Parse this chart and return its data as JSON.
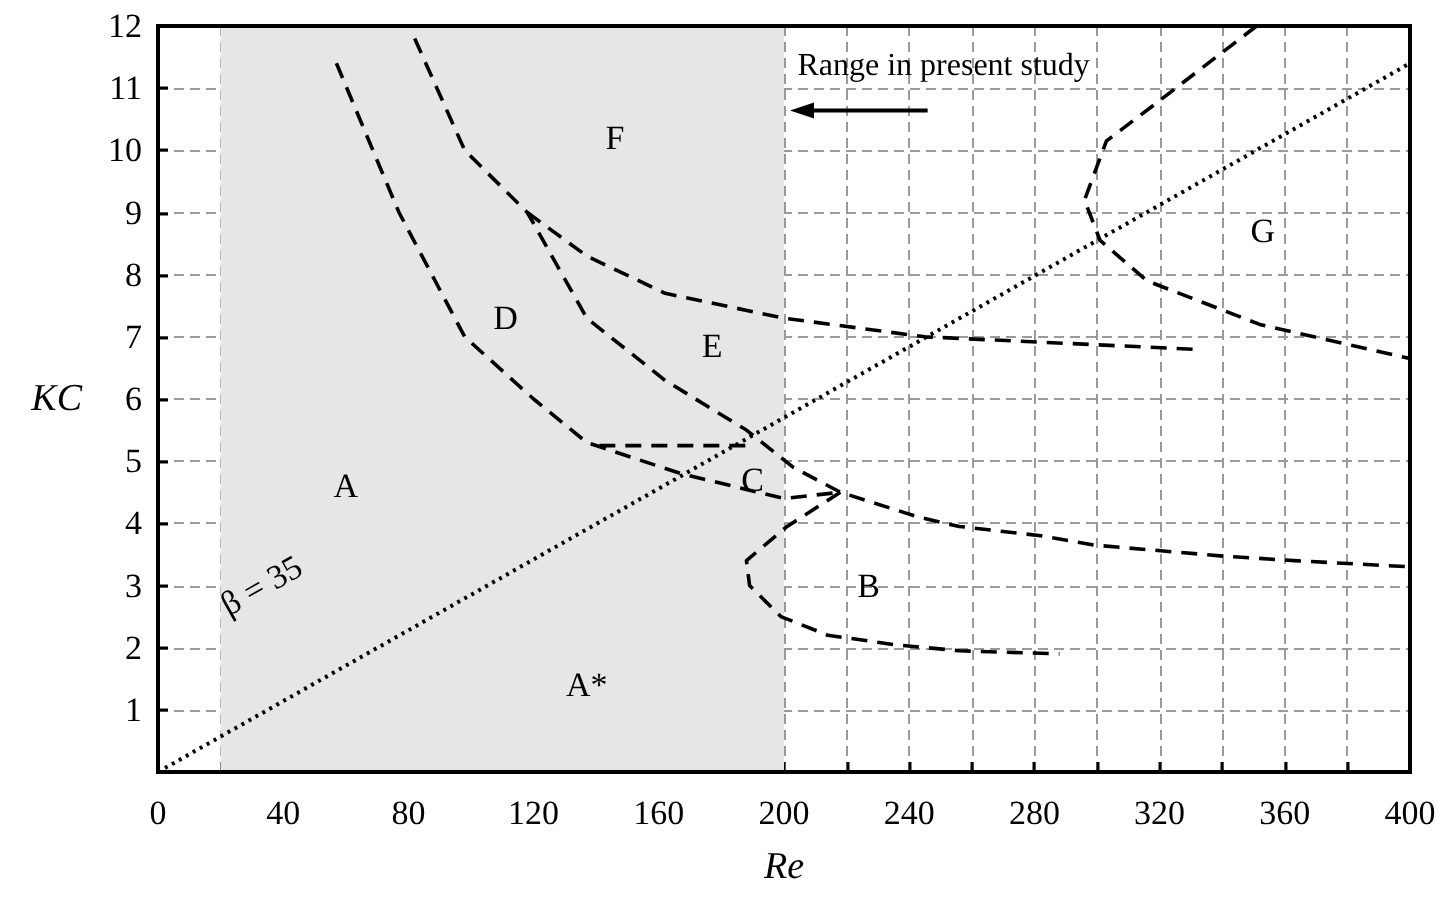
{
  "chart_data": {
    "type": "line",
    "xlabel": "Re",
    "ylabel": "KC",
    "xlim": [
      0,
      400
    ],
    "ylim": [
      0,
      12
    ],
    "xticks": [
      0,
      {
        "value": 20,
        "label": null
      },
      40,
      {
        "value": 60,
        "label": null
      },
      80,
      {
        "value": 100,
        "label": null
      },
      120,
      {
        "value": 140,
        "label": null
      },
      160,
      {
        "value": 180,
        "label": null
      },
      200,
      {
        "value": 220,
        "label": null
      },
      240,
      {
        "value": 260,
        "label": null
      },
      280,
      {
        "value": 300,
        "label": null
      },
      320,
      {
        "value": 340,
        "label": null
      },
      360,
      {
        "value": 380,
        "label": null
      },
      400
    ],
    "yticks": [
      {
        "value": 0,
        "label": null
      },
      1,
      2,
      3,
      4,
      5,
      6,
      7,
      8,
      9,
      10,
      11,
      12
    ],
    "grid": true,
    "marker": "none",
    "bands": [
      {
        "axis": "x",
        "from": 20,
        "to": 200,
        "color": "#e6e6e6"
      }
    ],
    "series": [
      {
        "color": "#000000",
        "line_style": "dashed",
        "x": [
          57,
          77,
          98,
          120,
          137,
          167,
          200,
          218
        ],
        "values": [
          11.4,
          9.0,
          7.0,
          6.0,
          5.3,
          4.8,
          4.4,
          4.5
        ]
      },
      {
        "color": "#000000",
        "line_style": "dashed",
        "x": [
          82,
          98,
          118,
          137,
          162,
          188,
          203,
          218,
          243,
          256,
          282,
          299,
          341,
          363,
          400
        ],
        "values": [
          11.8,
          10.0,
          9.0,
          7.3,
          6.3,
          5.5,
          4.9,
          4.5,
          4.1,
          3.95,
          3.8,
          3.65,
          3.47,
          3.4,
          3.3
        ]
      },
      {
        "color": "#000000",
        "line_style": "dashed",
        "x": [
          118,
          137,
          162,
          200,
          245,
          331
        ],
        "values": [
          9.0,
          8.3,
          7.7,
          7.3,
          7.0,
          6.8
        ]
      },
      {
        "color": "#000000",
        "line_style": "dashed",
        "x": [
          141,
          188
        ],
        "values": [
          5.25,
          5.25
        ]
      },
      {
        "color": "#000000",
        "line_style": "dashed",
        "x": [
          218,
          201,
          188,
          189,
          199,
          214,
          235,
          256,
          288
        ],
        "values": [
          4.5,
          3.95,
          3.4,
          3.0,
          2.5,
          2.2,
          2.05,
          1.95,
          1.9
        ]
      },
      {
        "color": "#000000",
        "line_style": "dashed",
        "x": [
          351,
          320,
          303,
          296,
          301,
          316,
          352,
          400
        ],
        "values": [
          12.0,
          10.8,
          10.15,
          9.2,
          8.55,
          7.9,
          7.2,
          6.65
        ]
      },
      {
        "color": "#000000",
        "line_style": "dotted",
        "x": [
          0,
          400
        ],
        "values": [
          0,
          11.4
        ]
      }
    ],
    "annotations": [
      "A",
      "A*",
      "B",
      "C",
      "D",
      "E",
      "F",
      "G",
      "β = 35",
      "Range in present study"
    ]
  }
}
